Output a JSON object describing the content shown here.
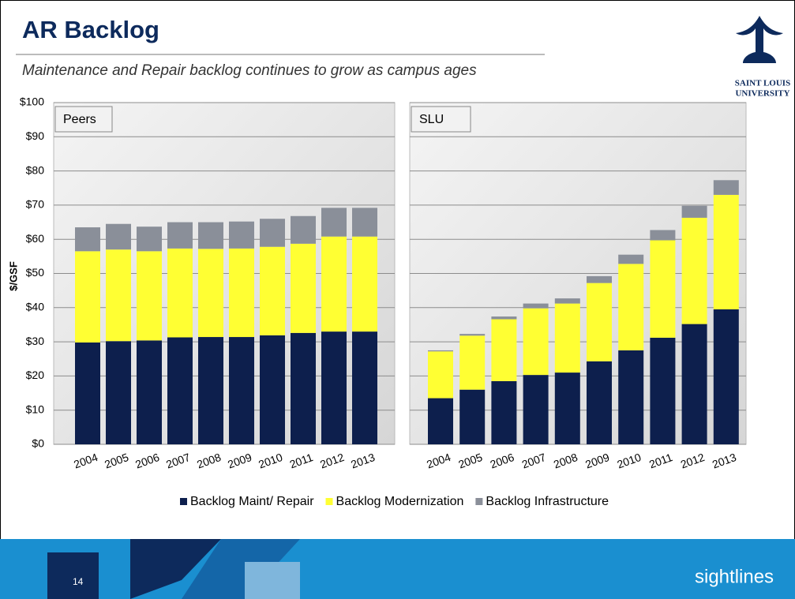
{
  "slide": {
    "title": "AR Backlog",
    "subtitle": "Maintenance and Repair backlog continues to grow as campus ages",
    "page_number": "14",
    "logo_line1": "SAINT LOUIS",
    "logo_line2": "UNIVERSITY",
    "brand": "sightlines"
  },
  "chart_data": [
    {
      "type": "stacked_bar",
      "title": "Peers",
      "ylabel": "$/GSF",
      "categories": [
        "2004",
        "2005",
        "2006",
        "2007",
        "2008",
        "2009",
        "2010",
        "2011",
        "2012",
        "2013"
      ],
      "ylim": [
        0,
        100
      ],
      "yticks": [
        {
          "value": 0,
          "label": "$0"
        },
        {
          "value": 10,
          "label": "$10"
        },
        {
          "value": 20,
          "label": "$20"
        },
        {
          "value": 30,
          "label": "$30"
        },
        {
          "value": 40,
          "label": "$40"
        },
        {
          "value": 50,
          "label": "$50"
        },
        {
          "value": 60,
          "label": "$60"
        },
        {
          "value": 70,
          "label": "$70"
        },
        {
          "value": 80,
          "label": "$80"
        },
        {
          "value": 90,
          "label": "$90"
        },
        {
          "value": 100,
          "label": "$100"
        }
      ],
      "grid": true,
      "series": [
        {
          "name": "Backlog Maint/ Repair",
          "color": "#0d1f4d",
          "values": [
            29.8,
            30.2,
            30.4,
            31.3,
            31.4,
            31.4,
            31.9,
            32.6,
            33,
            33
          ]
        },
        {
          "name": "Backlog Modernization",
          "color": "#ffff33",
          "values": [
            26.7,
            26.8,
            26.1,
            26,
            25.8,
            25.9,
            25.9,
            26.1,
            27.8,
            27.8
          ]
        },
        {
          "name": "Backlog Infrastructure",
          "color": "#8a8f99",
          "values": [
            7,
            7.5,
            7.2,
            7.7,
            7.8,
            7.9,
            8.2,
            8.1,
            8.4,
            8.4
          ]
        }
      ]
    },
    {
      "type": "stacked_bar",
      "title": "SLU",
      "categories": [
        "2004",
        "2005",
        "2006",
        "2007",
        "2008",
        "2009",
        "2010",
        "2011",
        "2012",
        "2013"
      ],
      "series": [
        {
          "color": "#0d1f4d",
          "values": [
            13.5,
            16,
            18.5,
            20.3,
            21,
            24.3,
            27.5,
            31.2,
            35.2,
            39.5
          ]
        },
        {
          "color": "#ffff33",
          "values": [
            13.7,
            15.8,
            18.1,
            19.5,
            20.2,
            22.9,
            25.3,
            28.5,
            31.1,
            33.5
          ]
        },
        {
          "color": "#8a8f99",
          "values": [
            0.3,
            0.5,
            0.8,
            1.4,
            1.5,
            2,
            2.7,
            3,
            3.5,
            4.3
          ]
        }
      ]
    }
  ]
}
